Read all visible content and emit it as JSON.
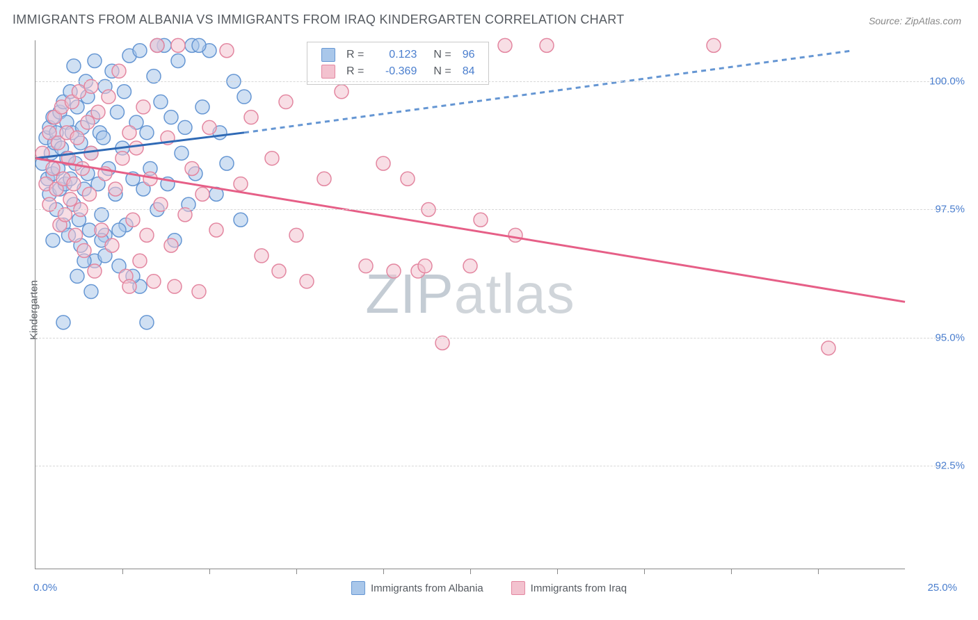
{
  "title": "IMMIGRANTS FROM ALBANIA VS IMMIGRANTS FROM IRAQ KINDERGARTEN CORRELATION CHART",
  "source": "Source: ZipAtlas.com",
  "ylabel": "Kindergarten",
  "watermark_a": "ZIP",
  "watermark_b": "atlas",
  "chart": {
    "type": "scatter",
    "xlim": [
      0,
      25
    ],
    "ylim": [
      90.5,
      100.8
    ],
    "xend_labels": [
      "0.0%",
      "25.0%"
    ],
    "ytick_values": [
      92.5,
      95.0,
      97.5,
      100.0
    ],
    "ytick_labels": [
      "92.5%",
      "95.0%",
      "97.5%",
      "100.0%"
    ],
    "xtick_values": [
      2.5,
      5.0,
      7.5,
      10.0,
      12.5,
      15.0,
      17.5,
      20.0,
      22.5
    ],
    "grid_color": "#d7d7d7",
    "background_color": "#ffffff",
    "series": [
      {
        "name": "Immigrants from Albania",
        "key": "albania",
        "fill": "#a9c7ea",
        "stroke": "#6596d3",
        "r_value": "0.123",
        "n_value": "96",
        "trend": {
          "x1": 0,
          "y1": 98.5,
          "x_solid_end": 6.0,
          "y_solid_end": 99.0,
          "x2": 23.5,
          "y2": 100.6,
          "solid_color": "#2e69b5",
          "dash_color": "#6596d3",
          "dash": "7 6",
          "width": 3
        },
        "points": [
          [
            0.2,
            98.4
          ],
          [
            0.3,
            98.9
          ],
          [
            0.35,
            98.1
          ],
          [
            0.4,
            99.1
          ],
          [
            0.4,
            97.8
          ],
          [
            0.45,
            98.6
          ],
          [
            0.5,
            99.3
          ],
          [
            0.5,
            98.2
          ],
          [
            0.55,
            98.8
          ],
          [
            0.6,
            99.0
          ],
          [
            0.6,
            97.5
          ],
          [
            0.65,
            98.3
          ],
          [
            0.7,
            99.4
          ],
          [
            0.7,
            97.9
          ],
          [
            0.75,
            98.7
          ],
          [
            0.8,
            99.6
          ],
          [
            0.8,
            97.2
          ],
          [
            0.85,
            98.0
          ],
          [
            0.9,
            99.2
          ],
          [
            0.9,
            98.5
          ],
          [
            0.95,
            97.0
          ],
          [
            1.0,
            99.8
          ],
          [
            1.0,
            98.1
          ],
          [
            1.05,
            99.0
          ],
          [
            1.1,
            97.6
          ],
          [
            1.1,
            100.3
          ],
          [
            1.15,
            98.4
          ],
          [
            1.2,
            99.5
          ],
          [
            1.25,
            97.3
          ],
          [
            1.3,
            98.8
          ],
          [
            1.3,
            96.8
          ],
          [
            1.35,
            99.1
          ],
          [
            1.4,
            97.9
          ],
          [
            1.45,
            100.0
          ],
          [
            1.5,
            98.2
          ],
          [
            1.5,
            99.7
          ],
          [
            1.55,
            97.1
          ],
          [
            1.6,
            98.6
          ],
          [
            1.65,
            99.3
          ],
          [
            1.7,
            96.5
          ],
          [
            1.7,
            100.4
          ],
          [
            1.8,
            98.0
          ],
          [
            1.85,
            99.0
          ],
          [
            1.9,
            97.4
          ],
          [
            1.95,
            98.9
          ],
          [
            2.0,
            99.9
          ],
          [
            2.0,
            97.0
          ],
          [
            2.1,
            98.3
          ],
          [
            2.2,
            100.2
          ],
          [
            2.3,
            97.8
          ],
          [
            2.35,
            99.4
          ],
          [
            2.4,
            96.4
          ],
          [
            2.5,
            98.7
          ],
          [
            2.55,
            99.8
          ],
          [
            2.6,
            97.2
          ],
          [
            2.7,
            100.5
          ],
          [
            2.8,
            98.1
          ],
          [
            2.9,
            99.2
          ],
          [
            3.0,
            96.0
          ],
          [
            3.0,
            100.6
          ],
          [
            3.1,
            97.9
          ],
          [
            3.2,
            99.0
          ],
          [
            3.3,
            98.3
          ],
          [
            3.4,
            100.1
          ],
          [
            3.5,
            97.5
          ],
          [
            3.6,
            99.6
          ],
          [
            3.7,
            100.7
          ],
          [
            3.8,
            98.0
          ],
          [
            3.9,
            99.3
          ],
          [
            4.0,
            96.9
          ],
          [
            4.1,
            100.4
          ],
          [
            4.2,
            98.6
          ],
          [
            4.3,
            99.1
          ],
          [
            4.4,
            97.6
          ],
          [
            4.5,
            100.7
          ],
          [
            4.6,
            98.2
          ],
          [
            4.8,
            99.5
          ],
          [
            5.0,
            100.6
          ],
          [
            5.2,
            97.8
          ],
          [
            5.3,
            99.0
          ],
          [
            5.5,
            98.4
          ],
          [
            5.7,
            100.0
          ],
          [
            5.9,
            97.3
          ],
          [
            6.0,
            99.7
          ],
          [
            0.8,
            95.3
          ],
          [
            1.2,
            96.2
          ],
          [
            1.6,
            95.9
          ],
          [
            2.0,
            96.6
          ],
          [
            2.8,
            96.2
          ],
          [
            3.2,
            95.3
          ],
          [
            0.5,
            96.9
          ],
          [
            1.9,
            96.9
          ],
          [
            1.4,
            96.5
          ],
          [
            2.4,
            97.1
          ],
          [
            3.5,
            100.7
          ],
          [
            4.7,
            100.7
          ]
        ]
      },
      {
        "name": "Immigrants from Iraq",
        "key": "iraq",
        "fill": "#f3c2cf",
        "stroke": "#e386a0",
        "r_value": "-0.369",
        "n_value": "84",
        "trend": {
          "x1": 0,
          "y1": 98.5,
          "x_solid_end": 25,
          "y_solid_end": 95.7,
          "x2": 25,
          "y2": 95.7,
          "solid_color": "#e65f87",
          "dash_color": "#e65f87",
          "dash": "",
          "width": 3
        },
        "points": [
          [
            0.2,
            98.6
          ],
          [
            0.3,
            98.0
          ],
          [
            0.4,
            99.0
          ],
          [
            0.4,
            97.6
          ],
          [
            0.5,
            98.3
          ],
          [
            0.55,
            99.3
          ],
          [
            0.6,
            97.9
          ],
          [
            0.65,
            98.8
          ],
          [
            0.7,
            97.2
          ],
          [
            0.75,
            99.5
          ],
          [
            0.8,
            98.1
          ],
          [
            0.85,
            97.4
          ],
          [
            0.9,
            99.0
          ],
          [
            0.95,
            98.5
          ],
          [
            1.0,
            97.7
          ],
          [
            1.05,
            99.6
          ],
          [
            1.1,
            98.0
          ],
          [
            1.15,
            97.0
          ],
          [
            1.2,
            98.9
          ],
          [
            1.25,
            99.8
          ],
          [
            1.3,
            97.5
          ],
          [
            1.35,
            98.3
          ],
          [
            1.4,
            96.7
          ],
          [
            1.5,
            99.2
          ],
          [
            1.55,
            97.8
          ],
          [
            1.6,
            98.6
          ],
          [
            1.7,
            96.3
          ],
          [
            1.8,
            99.4
          ],
          [
            1.9,
            97.1
          ],
          [
            2.0,
            98.2
          ],
          [
            2.1,
            99.7
          ],
          [
            2.2,
            96.8
          ],
          [
            2.3,
            97.9
          ],
          [
            2.4,
            100.2
          ],
          [
            2.5,
            98.5
          ],
          [
            2.6,
            96.2
          ],
          [
            2.7,
            99.0
          ],
          [
            2.8,
            97.3
          ],
          [
            2.9,
            98.7
          ],
          [
            3.0,
            96.5
          ],
          [
            3.1,
            99.5
          ],
          [
            3.2,
            97.0
          ],
          [
            3.3,
            98.1
          ],
          [
            3.4,
            96.1
          ],
          [
            3.5,
            100.7
          ],
          [
            3.6,
            97.6
          ],
          [
            3.8,
            98.9
          ],
          [
            4.0,
            96.0
          ],
          [
            4.1,
            100.7
          ],
          [
            4.3,
            97.4
          ],
          [
            4.5,
            98.3
          ],
          [
            4.7,
            95.9
          ],
          [
            5.0,
            99.1
          ],
          [
            5.2,
            97.1
          ],
          [
            5.5,
            100.6
          ],
          [
            5.9,
            98.0
          ],
          [
            6.2,
            99.3
          ],
          [
            6.5,
            96.6
          ],
          [
            6.8,
            98.5
          ],
          [
            7.0,
            96.3
          ],
          [
            7.2,
            99.6
          ],
          [
            7.5,
            97.0
          ],
          [
            7.8,
            96.1
          ],
          [
            8.3,
            98.1
          ],
          [
            8.8,
            99.8
          ],
          [
            9.5,
            96.4
          ],
          [
            10.0,
            98.4
          ],
          [
            10.3,
            96.3
          ],
          [
            10.7,
            98.1
          ],
          [
            11.0,
            96.3
          ],
          [
            11.2,
            96.4
          ],
          [
            11.3,
            97.5
          ],
          [
            11.7,
            94.9
          ],
          [
            12.5,
            96.4
          ],
          [
            12.8,
            97.3
          ],
          [
            13.5,
            100.7
          ],
          [
            13.8,
            97.0
          ],
          [
            14.7,
            100.7
          ],
          [
            19.5,
            100.7
          ],
          [
            22.8,
            94.8
          ],
          [
            2.7,
            96.0
          ],
          [
            3.9,
            96.8
          ],
          [
            4.8,
            97.8
          ],
          [
            1.6,
            99.9
          ]
        ]
      }
    ],
    "marker_radius": 10,
    "marker_opacity": 0.55
  },
  "rlegend": {
    "cols": [
      "R =",
      "N ="
    ]
  },
  "bottom_legend": {
    "items": [
      "Immigrants from Albania",
      "Immigrants from Iraq"
    ]
  }
}
